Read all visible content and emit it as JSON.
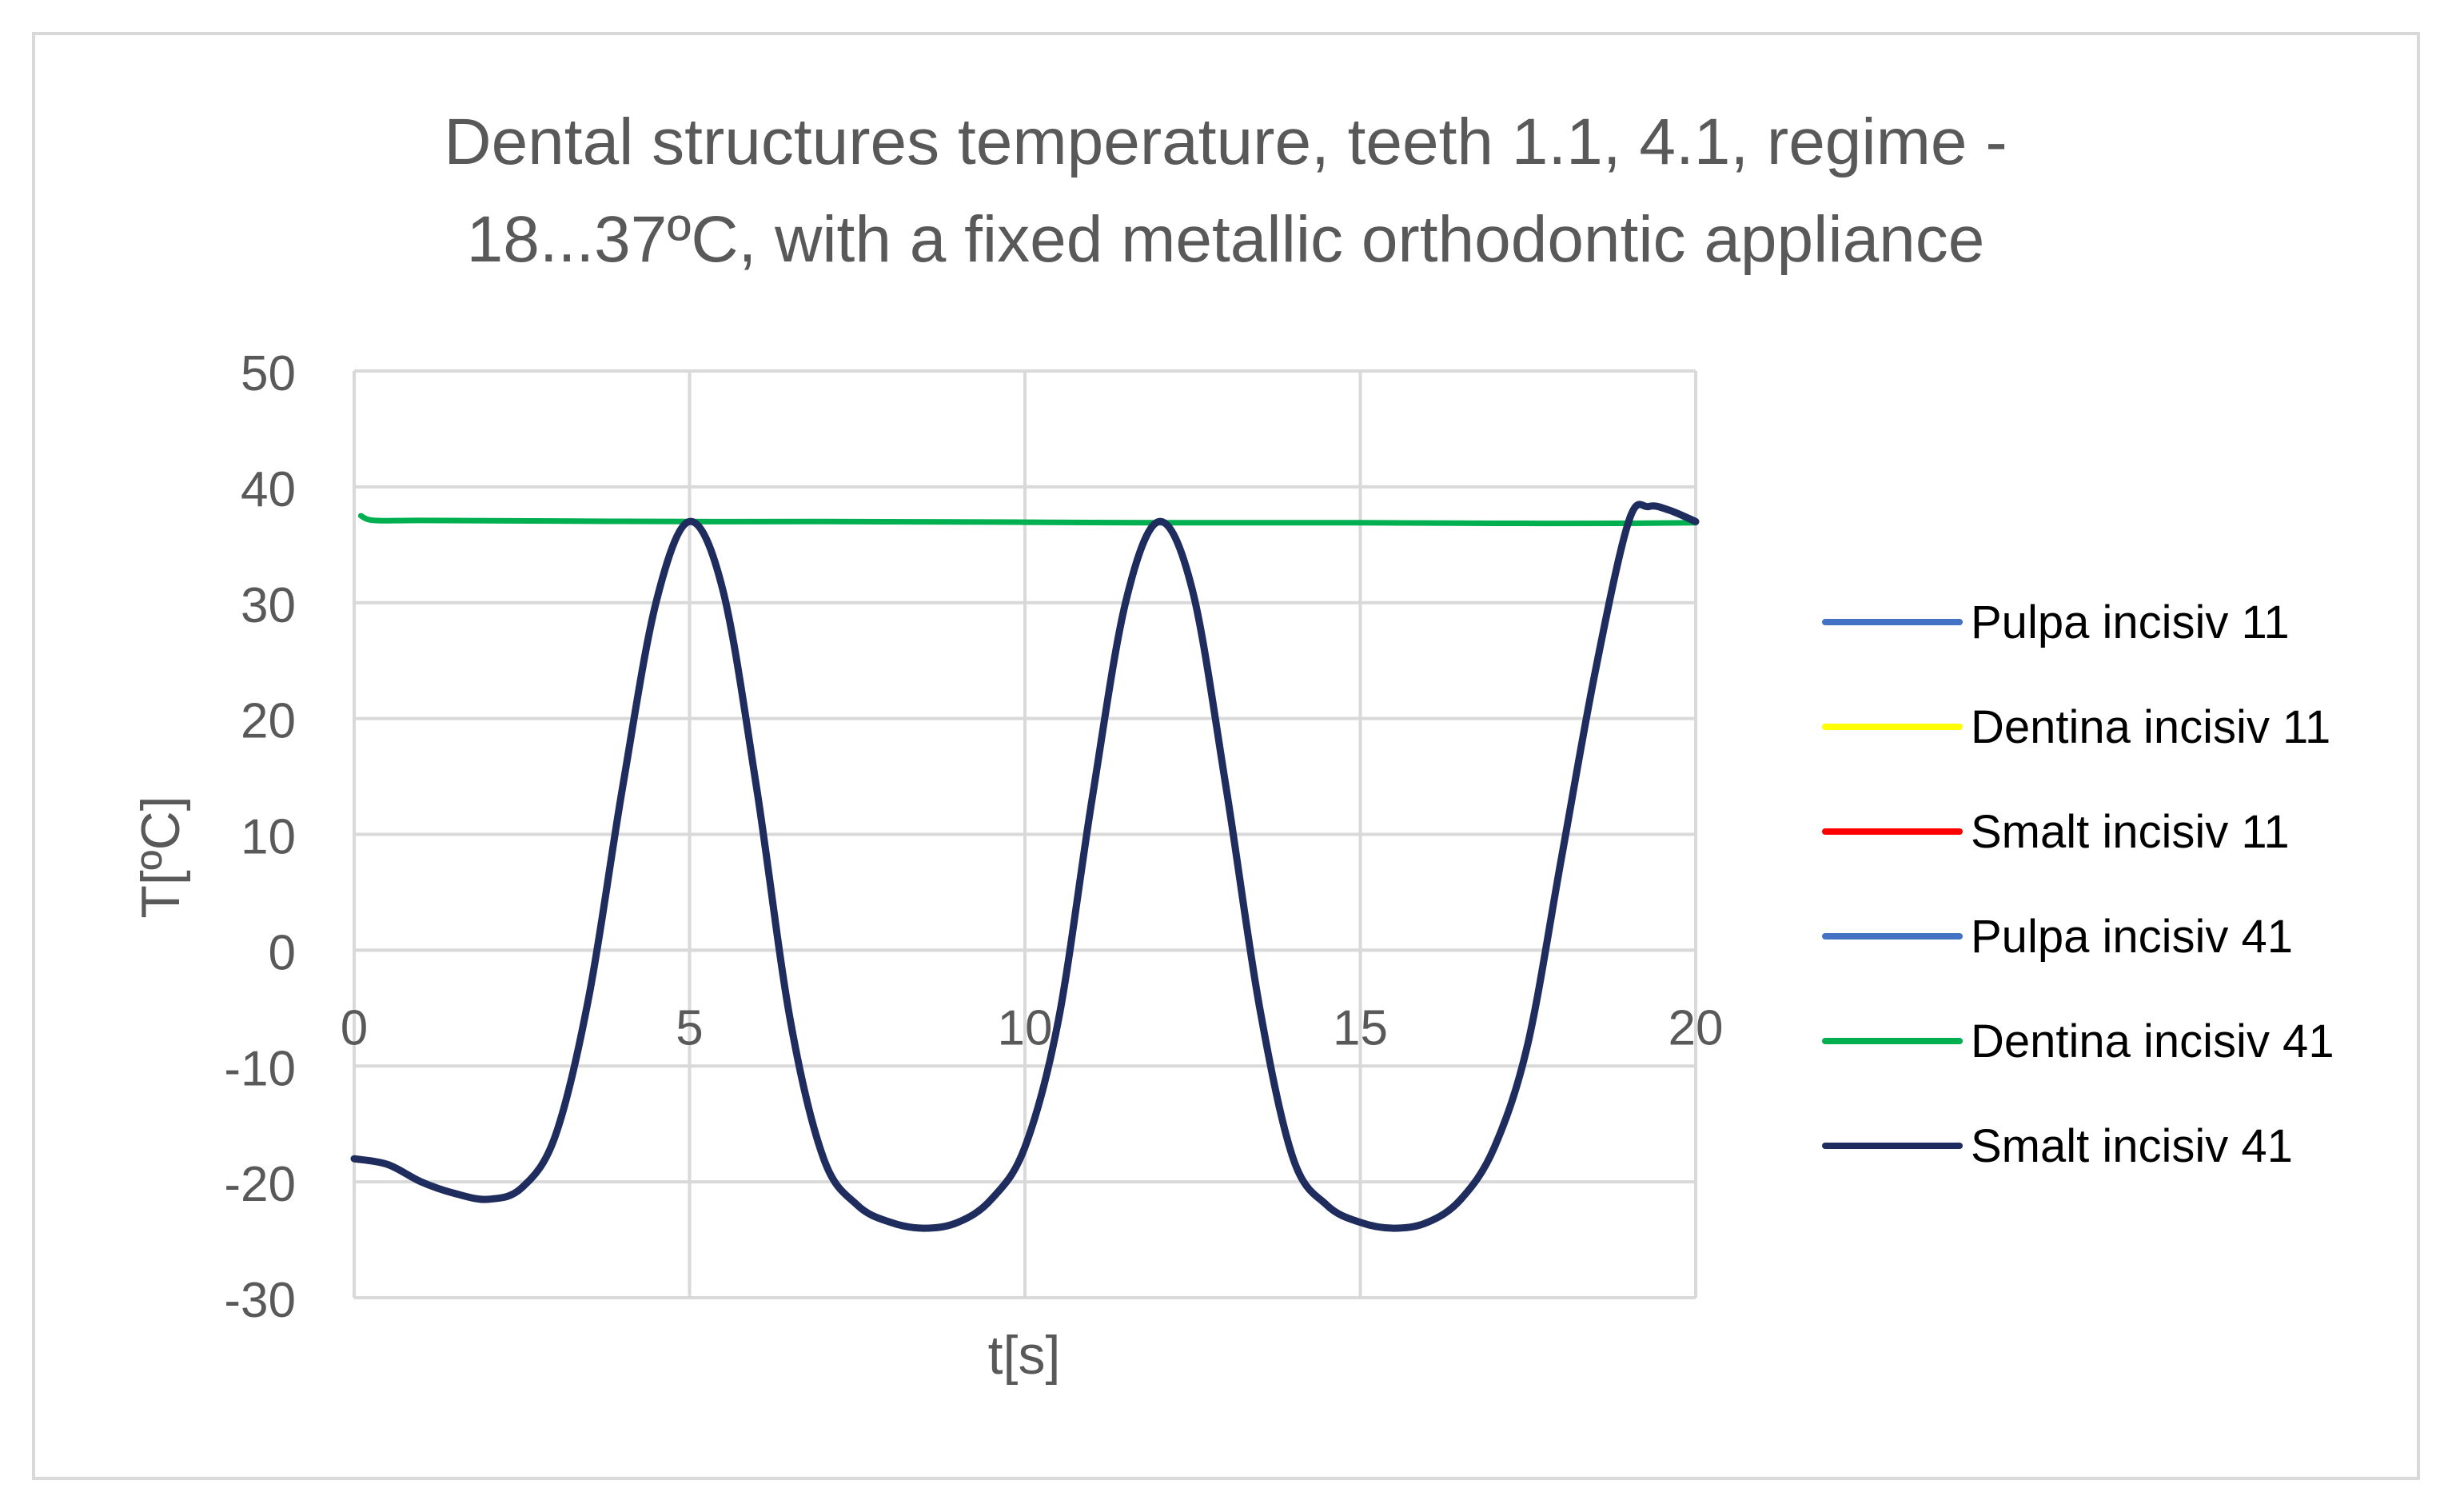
{
  "chart_data": {
    "type": "line",
    "title_lines": [
      "Dental structures temperature, teeth 1.1, 4.1, regime -",
      "18...37ºC, with a fixed metallic orthodontic appliance"
    ],
    "xlabel": "t[s]",
    "ylabel": "T[ºC]",
    "xlim": [
      0,
      20
    ],
    "ylim": [
      -30,
      50
    ],
    "x_ticks": [
      0,
      5,
      10,
      15,
      20
    ],
    "y_ticks": [
      50,
      40,
      30,
      20,
      10,
      0,
      -10,
      -20,
      -30
    ],
    "x_tick_labels": [
      "0",
      "5",
      "10",
      "15",
      "20"
    ],
    "y_tick_labels": [
      "50",
      "40",
      "30",
      "20",
      "10",
      "0",
      "-10",
      "-20",
      "-30"
    ],
    "grid": true,
    "legend_position": "right",
    "series": [
      {
        "name": "Pulpa incisiv 11",
        "color": "#4472c4",
        "width": 5,
        "x": [
          0.1,
          0.3,
          1,
          3,
          5,
          7,
          10,
          12,
          15,
          17,
          19,
          20
        ],
        "y": [
          37.5,
          37.1,
          37.1,
          37.05,
          37.0,
          37.0,
          36.95,
          36.9,
          36.9,
          36.85,
          36.85,
          36.9
        ]
      },
      {
        "name": "Dentina incisiv 11",
        "color": "#ffff00",
        "width": 5,
        "x": [
          0.1,
          0.3,
          1,
          3,
          5,
          7,
          10,
          12,
          15,
          17,
          19,
          20
        ],
        "y": [
          37.5,
          37.1,
          37.1,
          37.05,
          37.0,
          37.0,
          36.95,
          36.9,
          36.9,
          36.85,
          36.85,
          36.9
        ]
      },
      {
        "name": "Smalt incisiv 11",
        "color": "#ff0000",
        "width": 5,
        "x": [
          0.1,
          0.3,
          1,
          3,
          5,
          7,
          10,
          12,
          15,
          17,
          19,
          20
        ],
        "y": [
          37.5,
          37.1,
          37.1,
          37.05,
          37.0,
          37.0,
          36.95,
          36.9,
          36.9,
          36.85,
          36.85,
          36.9
        ]
      },
      {
        "name": "Pulpa incisiv 41",
        "color": "#4472c4",
        "width": 5,
        "x": [
          0.1,
          0.3,
          1,
          3,
          5,
          7,
          10,
          12,
          15,
          17,
          19,
          20
        ],
        "y": [
          37.5,
          37.1,
          37.1,
          37.05,
          37.0,
          37.0,
          36.95,
          36.9,
          36.9,
          36.85,
          36.85,
          36.9
        ]
      },
      {
        "name": "Dentina incisiv 41",
        "color": "#00b050",
        "width": 7,
        "x": [
          0.1,
          0.3,
          1,
          3,
          5,
          7,
          10,
          12,
          15,
          17,
          19,
          20
        ],
        "y": [
          37.5,
          37.1,
          37.1,
          37.05,
          37.0,
          37.0,
          36.95,
          36.9,
          36.9,
          36.85,
          36.85,
          36.9
        ]
      },
      {
        "name": "Smalt incisiv 41",
        "color": "#1f2d5e",
        "width": 9,
        "x": [
          0,
          0.5,
          1,
          1.5,
          2.0,
          2.5,
          3.0,
          3.5,
          4.0,
          4.5,
          5.0,
          5.5,
          6.0,
          6.5,
          7.0,
          7.5,
          8.0,
          8.5,
          9.0,
          9.5,
          10.0,
          10.5,
          11.0,
          11.5,
          12.0,
          12.5,
          13.0,
          13.5,
          14.0,
          14.5,
          15.0,
          15.5,
          16.0,
          16.5,
          17.0,
          17.5,
          18.0,
          18.5,
          19.0,
          19.3,
          19.6,
          20.0
        ],
        "y": [
          -18,
          -18.5,
          -20,
          -21,
          -21.5,
          -20.5,
          -16,
          -4,
          14,
          30,
          37,
          31,
          14,
          -6,
          -18,
          -22,
          -23.5,
          -24,
          -23.5,
          -21.5,
          -17,
          -6,
          13,
          30,
          37,
          31,
          14,
          -5,
          -18,
          -22,
          -23.5,
          -24,
          -23.5,
          -21.5,
          -17,
          -8,
          8,
          24,
          37,
          38.3,
          38,
          37
        ]
      }
    ]
  }
}
